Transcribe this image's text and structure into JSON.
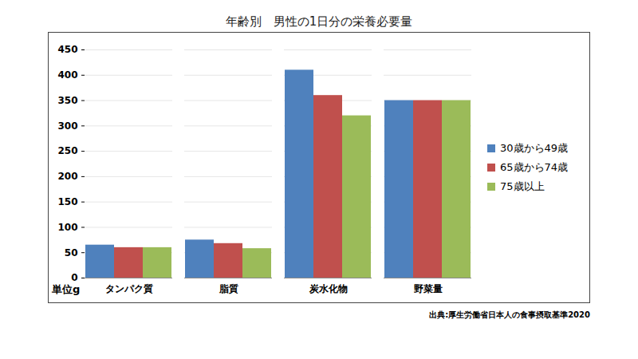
{
  "chart_data": {
    "type": "bar",
    "title": "年齢別　男性の1日分の栄養必要量",
    "y_label": "単位g",
    "caption": "出典:厚生労働省日本人の食事摂取基準2020",
    "categories": [
      "タンパク質",
      "脂質",
      "炭水化物",
      "野菜量"
    ],
    "series": [
      {
        "name": "30歳から49歳",
        "color": "#4f81bd",
        "values": [
          65,
          75,
          410,
          350
        ]
      },
      {
        "name": "65歳から74歳",
        "color": "#c0504d",
        "values": [
          60,
          68,
          360,
          350
        ]
      },
      {
        "name": "75歳以上",
        "color": "#9bbb59",
        "values": [
          60,
          58,
          320,
          350
        ]
      }
    ],
    "ylim": [
      0,
      450
    ],
    "yticks": [
      0,
      50,
      100,
      150,
      200,
      250,
      300,
      350,
      400,
      450
    ],
    "grid": true,
    "legend": "right"
  }
}
